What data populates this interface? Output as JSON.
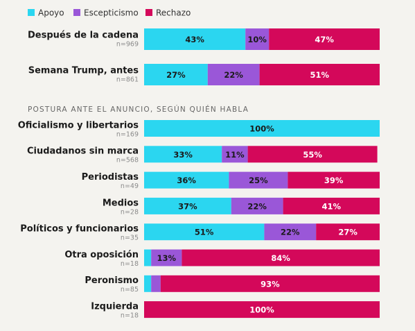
{
  "chart_data": [
    {
      "type": "stacked-bar-horizontal",
      "categories": [
        "Después de la cadena",
        "Semana Trump, antes"
      ],
      "notes": [
        "n=969",
        "n=861"
      ],
      "xlim": [
        0,
        100
      ],
      "series": [
        {
          "name": "Apoyo",
          "color": "#2bd6f0",
          "label_color": "#1a1a1a",
          "values": [
            43,
            27
          ],
          "value_labels": [
            "43%",
            "27%"
          ]
        },
        {
          "name": "Escepticismo",
          "color": "#9a57d8",
          "label_color": "#1a1a1a",
          "values": [
            10,
            22
          ],
          "value_labels": [
            "10%",
            "22%"
          ]
        },
        {
          "name": "Rechazo",
          "color": "#d4085a",
          "label_color": "#ffffff",
          "values": [
            47,
            51
          ],
          "value_labels": [
            "47%",
            "51%"
          ]
        }
      ]
    },
    {
      "type": "stacked-bar-horizontal",
      "title": "POSTURA ANTE EL ANUNCIO, SEGÚN QUIÉN HABLA",
      "categories": [
        "Oficialismo y libertarios",
        "Ciudadanos sin marca",
        "Periodistas",
        "Medios",
        "Políticos y funcionarios",
        "Otra oposición",
        "Peronismo",
        "Izquierda"
      ],
      "notes": [
        "n=169",
        "n=568",
        "n=49",
        "n=28",
        "n=35",
        "n=18",
        "n=85",
        "n=18"
      ],
      "xlim": [
        0,
        100
      ],
      "series": [
        {
          "color": "#2bd6f0",
          "label_color": "#1a1a1a",
          "values": [
            100,
            33,
            36,
            37,
            51,
            3,
            3,
            0
          ],
          "value_labels": [
            "100%",
            "33%",
            "36%",
            "37%",
            "51%",
            null,
            null,
            null
          ]
        },
        {
          "color": "#9a57d8",
          "label_color": "#1a1a1a",
          "values": [
            0,
            11,
            25,
            22,
            22,
            13,
            4,
            0
          ],
          "value_labels": [
            null,
            "11%",
            "25%",
            "22%",
            "22%",
            "13%",
            null,
            null
          ]
        },
        {
          "color": "#d4085a",
          "label_color": "#ffffff",
          "values": [
            0,
            55,
            39,
            41,
            27,
            84,
            93,
            100
          ],
          "value_labels": [
            null,
            "55%",
            "39%",
            "41%",
            "27%",
            "84%",
            "93%",
            "100%"
          ]
        }
      ]
    }
  ]
}
